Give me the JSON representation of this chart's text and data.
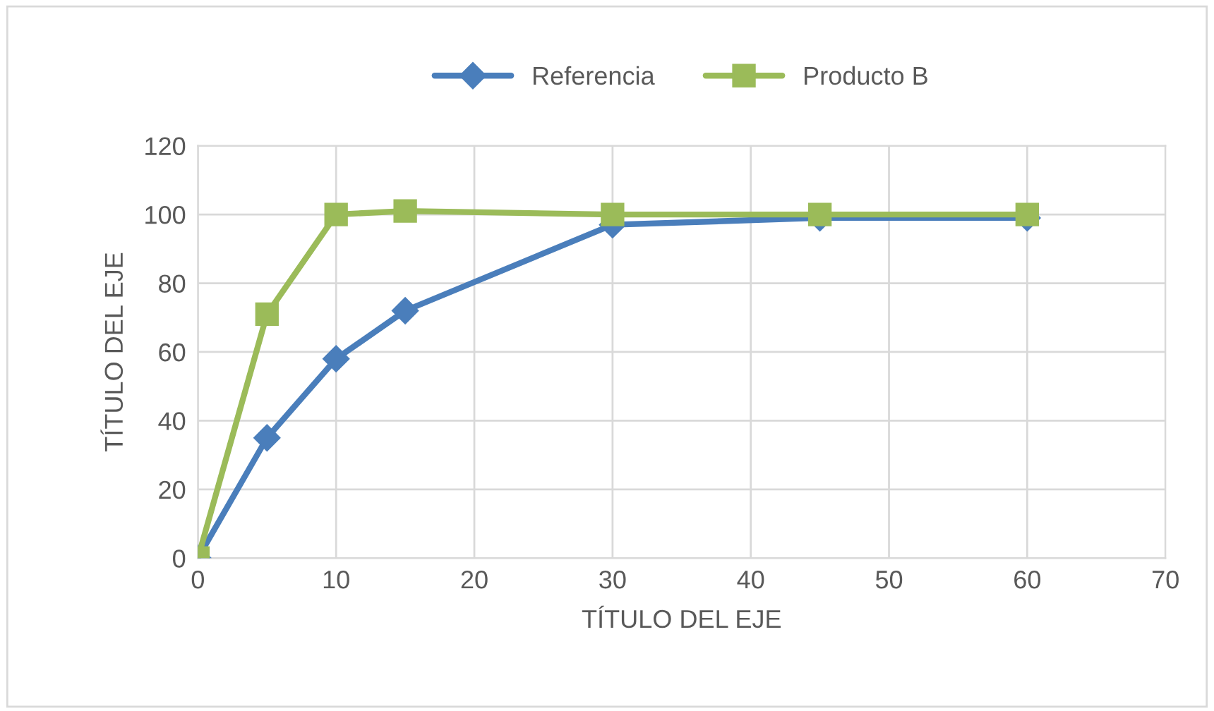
{
  "chart_data": {
    "type": "line",
    "xlabel": "TÍTULO DEL EJE",
    "ylabel": "TÍTULO DEL EJE",
    "xlim": [
      0,
      70
    ],
    "xticks": [
      0,
      10,
      20,
      30,
      40,
      50,
      60,
      70
    ],
    "ylim": [
      0,
      120
    ],
    "yticks": [
      0,
      20,
      40,
      60,
      80,
      100,
      120
    ],
    "grid": true,
    "legend": "top",
    "series": [
      {
        "name": "Referencia",
        "color": "#4a7ebb",
        "marker": "diamond",
        "x": [
          0,
          5,
          10,
          15,
          30,
          45,
          60
        ],
        "values": [
          0,
          35,
          58,
          72,
          97,
          99,
          99
        ]
      },
      {
        "name": "Producto B",
        "color": "#9bbb59",
        "marker": "square",
        "x": [
          0,
          5,
          10,
          15,
          30,
          45,
          60
        ],
        "values": [
          0,
          71,
          100,
          101,
          100,
          100,
          100
        ]
      }
    ]
  }
}
